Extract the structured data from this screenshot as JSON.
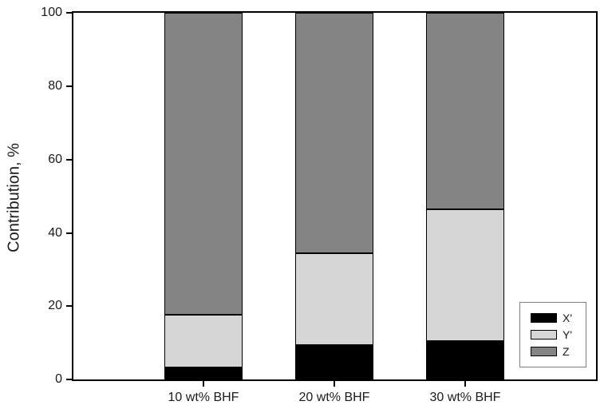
{
  "chart_data": {
    "type": "bar",
    "stacked": true,
    "title": "",
    "xlabel": "",
    "ylabel": "Contribution, %",
    "ylim": [
      0,
      100
    ],
    "yticks": [
      0,
      20,
      40,
      60,
      80,
      100
    ],
    "grid": false,
    "legend_position": "lower right",
    "categories": [
      "10 wt% BHF",
      "20 wt% BHF",
      "30 wt% BHF"
    ],
    "series": [
      {
        "name": "X'",
        "color": "#000000",
        "values": [
          3.3,
          9.3,
          10.4
        ]
      },
      {
        "name": "Y'",
        "color": "#d6d6d6",
        "values": [
          14.3,
          25.1,
          36.1
        ]
      },
      {
        "name": "Z",
        "color": "#848484",
        "values": [
          82.4,
          65.6,
          53.5
        ]
      }
    ],
    "colors": {
      "frame": "#000000",
      "background": "#ffffff",
      "legend_border": "#7f7f7f"
    }
  }
}
